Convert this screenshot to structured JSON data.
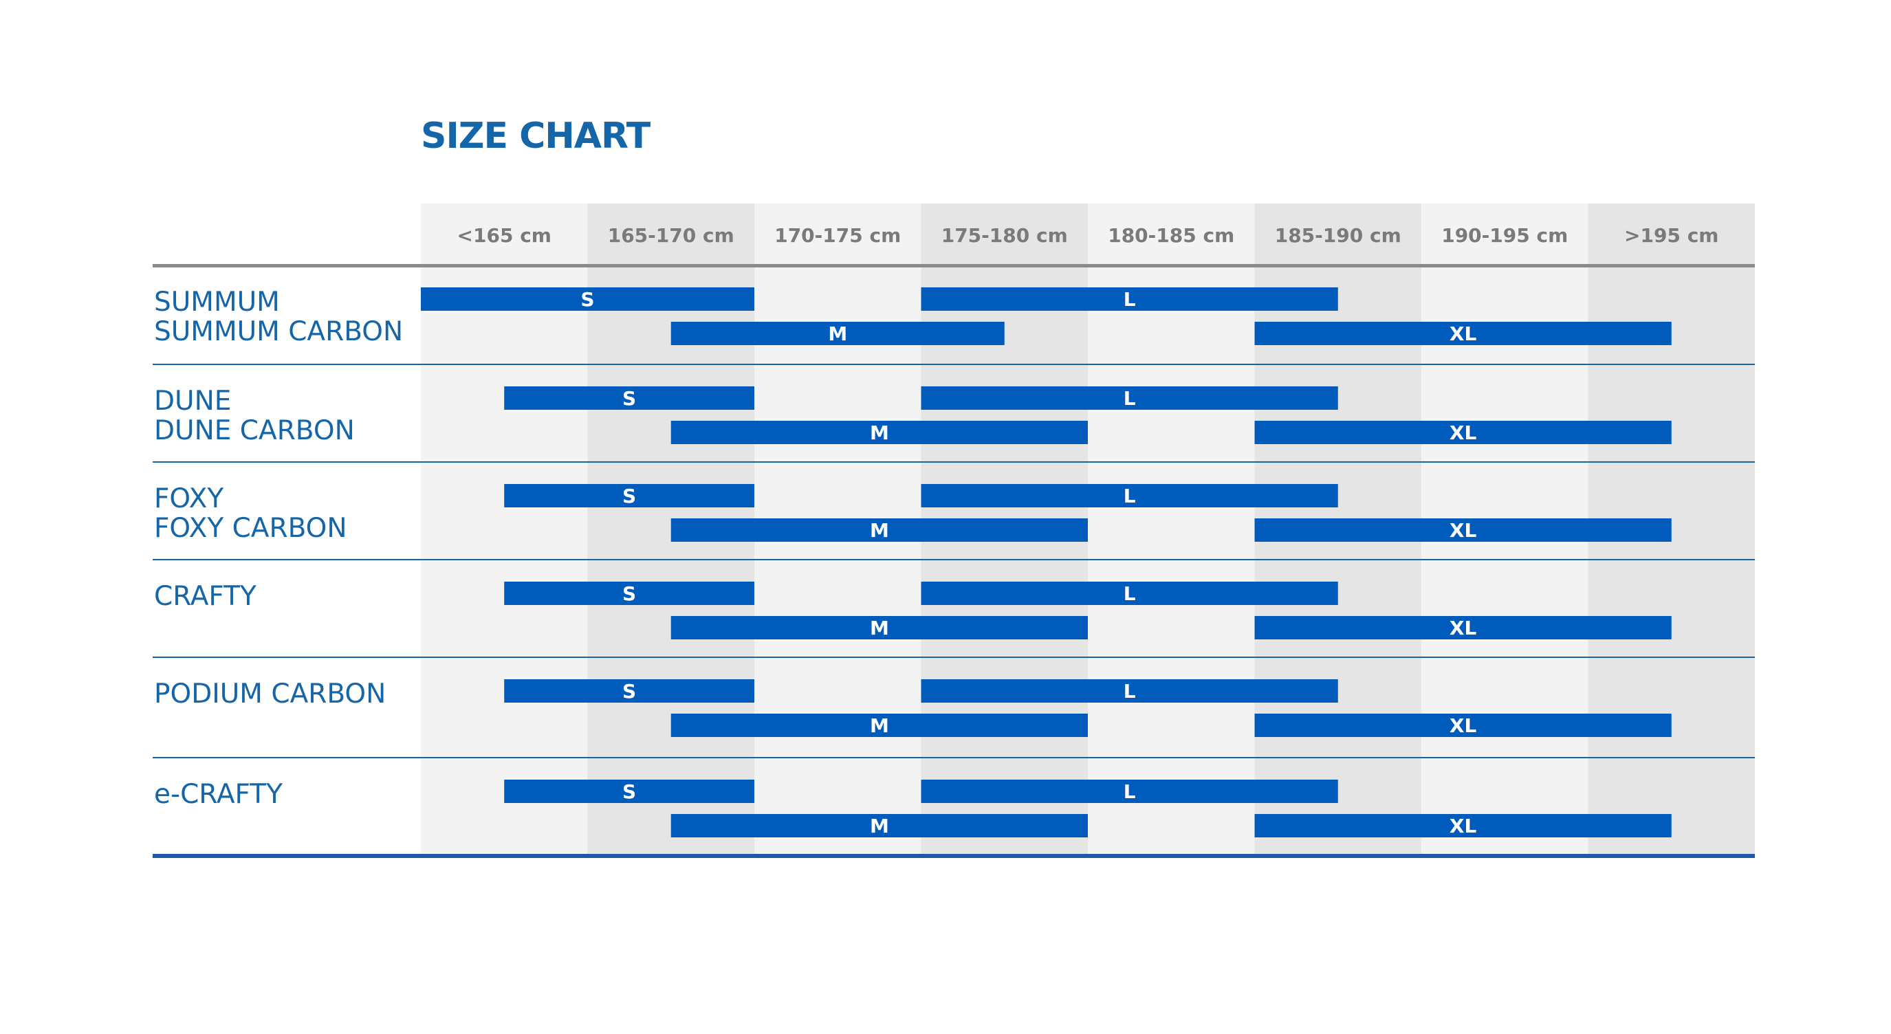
{
  "title": "SIZE CHART",
  "colors": {
    "accent": "#1565a9",
    "bar": "#005bbb",
    "column_light": "#f3f3f3",
    "column_dark": "#e6e5e5",
    "header_text": "#7a7a7a",
    "header_rule": "#8a8a8a",
    "bottom_rule": "#1e5aa8"
  },
  "chart_data": {
    "type": "range-bar",
    "title": "SIZE CHART",
    "columns": [
      "<165 cm",
      "165-170 cm",
      "170-175 cm",
      "175-180 cm",
      "180-185 cm",
      "185-190 cm",
      "190-195 cm",
      ">195 cm"
    ],
    "rows": [
      {
        "lines": [
          "SUMMUM",
          "SUMMUM CARBON"
        ],
        "bars": [
          {
            "label": "S",
            "lane": 0,
            "from": 0.0,
            "to": 2.0
          },
          {
            "label": "L",
            "lane": 0,
            "from": 3.0,
            "to": 5.5
          },
          {
            "label": "M",
            "lane": 1,
            "from": 1.5,
            "to": 3.5
          },
          {
            "label": "XL",
            "lane": 1,
            "from": 5.0,
            "to": 7.5
          }
        ]
      },
      {
        "lines": [
          "DUNE",
          "DUNE CARBON"
        ],
        "bars": [
          {
            "label": "S",
            "lane": 0,
            "from": 0.5,
            "to": 2.0
          },
          {
            "label": "L",
            "lane": 0,
            "from": 3.0,
            "to": 5.5
          },
          {
            "label": "M",
            "lane": 1,
            "from": 1.5,
            "to": 4.0
          },
          {
            "label": "XL",
            "lane": 1,
            "from": 5.0,
            "to": 7.5
          }
        ]
      },
      {
        "lines": [
          "FOXY",
          "FOXY CARBON"
        ],
        "bars": [
          {
            "label": "S",
            "lane": 0,
            "from": 0.5,
            "to": 2.0
          },
          {
            "label": "L",
            "lane": 0,
            "from": 3.0,
            "to": 5.5
          },
          {
            "label": "M",
            "lane": 1,
            "from": 1.5,
            "to": 4.0
          },
          {
            "label": "XL",
            "lane": 1,
            "from": 5.0,
            "to": 7.5
          }
        ]
      },
      {
        "lines": [
          "CRAFTY"
        ],
        "bars": [
          {
            "label": "S",
            "lane": 0,
            "from": 0.5,
            "to": 2.0
          },
          {
            "label": "L",
            "lane": 0,
            "from": 3.0,
            "to": 5.5
          },
          {
            "label": "M",
            "lane": 1,
            "from": 1.5,
            "to": 4.0
          },
          {
            "label": "XL",
            "lane": 1,
            "from": 5.0,
            "to": 7.5
          }
        ]
      },
      {
        "lines": [
          "PODIUM CARBON"
        ],
        "bars": [
          {
            "label": "S",
            "lane": 0,
            "from": 0.5,
            "to": 2.0
          },
          {
            "label": "L",
            "lane": 0,
            "from": 3.0,
            "to": 5.5
          },
          {
            "label": "M",
            "lane": 1,
            "from": 1.5,
            "to": 4.0
          },
          {
            "label": "XL",
            "lane": 1,
            "from": 5.0,
            "to": 7.5
          }
        ]
      },
      {
        "lines": [
          "e-CRAFTY"
        ],
        "bars": [
          {
            "label": "S",
            "lane": 0,
            "from": 0.5,
            "to": 2.0
          },
          {
            "label": "L",
            "lane": 0,
            "from": 3.0,
            "to": 5.5
          },
          {
            "label": "M",
            "lane": 1,
            "from": 1.5,
            "to": 4.0
          },
          {
            "label": "XL",
            "lane": 1,
            "from": 5.0,
            "to": 7.5
          }
        ]
      }
    ]
  }
}
